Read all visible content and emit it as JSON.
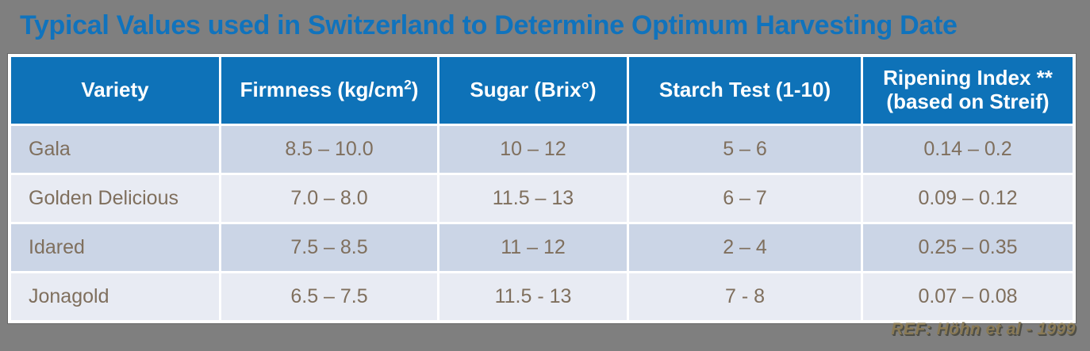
{
  "slide": {
    "title": "Typical Values used in Switzerland to Determine Optimum Harvesting Date",
    "reference": "REF: Höhn et al - 1999"
  },
  "colors": {
    "slide_background": "#7f7f7f",
    "title_blue": "#1073bd",
    "header_blue": "#0e72b8",
    "row_odd_background": "#cbd5e6",
    "row_even_background": "#e8ebf3",
    "cell_text_brown": "#7f6f5d",
    "header_text": "#ffffff",
    "reference_gold": "#8a7a55"
  },
  "table": {
    "headers": {
      "variety": "Variety",
      "firmness_prefix": "Firmness (kg/cm",
      "firmness_sup": "2",
      "firmness_suffix": ")",
      "sugar": "Sugar (Brix°)",
      "starch": "Starch Test (1-10)",
      "ripening_line1": "Ripening Index **",
      "ripening_line2": "(based on Streif)"
    },
    "rows": [
      {
        "variety": "Gala",
        "firmness": "8.5 – 10.0",
        "sugar": "10 – 12",
        "starch": "5 – 6",
        "ripening": "0.14 – 0.2"
      },
      {
        "variety": "Golden Delicious",
        "firmness": "7.0 – 8.0",
        "sugar": "11.5 – 13",
        "starch": "6 – 7",
        "ripening": "0.09 – 0.12"
      },
      {
        "variety": "Idared",
        "firmness": "7.5 – 8.5",
        "sugar": "11 – 12",
        "starch": "2 – 4",
        "ripening": "0.25 – 0.35"
      },
      {
        "variety": "Jonagold",
        "firmness": "6.5 – 7.5",
        "sugar": "11.5 - 13",
        "starch": "7 - 8",
        "ripening": "0.07 – 0.08"
      }
    ]
  },
  "chart_data": {
    "type": "table",
    "title": "Typical Values used in Switzerland to Determine Optimum Harvesting Date",
    "columns": [
      "Variety",
      "Firmness (kg/cm2)",
      "Sugar (Brix°)",
      "Starch Test (1-10)",
      "Ripening Index ** (based on Streif)"
    ],
    "rows": [
      [
        "Gala",
        "8.5 – 10.0",
        "10 – 12",
        "5 – 6",
        "0.14 – 0.2"
      ],
      [
        "Golden Delicious",
        "7.0 – 8.0",
        "11.5 – 13",
        "6 – 7",
        "0.09 – 0.12"
      ],
      [
        "Idared",
        "7.5 – 8.5",
        "11 – 12",
        "2 – 4",
        "0.25 – 0.35"
      ],
      [
        "Jonagold",
        "6.5 – 7.5",
        "11.5 - 13",
        "7 - 8",
        "0.07 – 0.08"
      ]
    ],
    "annotation": "REF: Höhn et al - 1999",
    "layout": "header row blue, alternating light-blue / near-white data rows, white grid lines"
  }
}
